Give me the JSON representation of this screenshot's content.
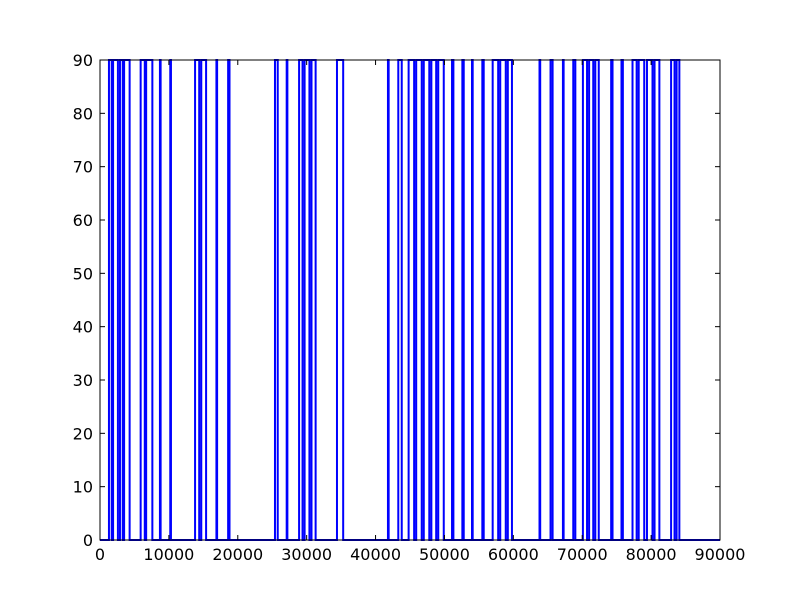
{
  "chart_data": {
    "type": "line",
    "title": "",
    "xlabel": "",
    "ylabel": "",
    "xlim": [
      0,
      90000
    ],
    "ylim": [
      0,
      90
    ],
    "grid": false,
    "legend": "none",
    "xticks": [
      0,
      10000,
      20000,
      30000,
      40000,
      50000,
      60000,
      70000,
      80000,
      90000
    ],
    "yticks": [
      0,
      10,
      20,
      30,
      40,
      50,
      60,
      70,
      80,
      90
    ],
    "xtick_labels": [
      "0",
      "10000",
      "20000",
      "30000",
      "40000",
      "50000",
      "60000",
      "70000",
      "80000",
      "90000"
    ],
    "ytick_labels": [
      "0",
      "10",
      "20",
      "30",
      "40",
      "50",
      "60",
      "70",
      "80",
      "90"
    ],
    "series": [
      {
        "color": "#0000ff",
        "baseline": 0,
        "peak": 90,
        "x_start": 0,
        "x_end": 90000,
        "high_intervals": [
          [
            1300,
            1700
          ],
          [
            1900,
            2600
          ],
          [
            2900,
            3300
          ],
          [
            3500,
            4300
          ],
          [
            5900,
            6500
          ],
          [
            6700,
            7600
          ],
          [
            8700,
            8800
          ],
          [
            10200,
            10300
          ],
          [
            13800,
            14400
          ],
          [
            14700,
            15400
          ],
          [
            16900,
            17000
          ],
          [
            18600,
            18800
          ],
          [
            25400,
            25800
          ],
          [
            27100,
            27200
          ],
          [
            28900,
            29400
          ],
          [
            29700,
            30400
          ],
          [
            30700,
            31300
          ],
          [
            34400,
            35300
          ],
          [
            41800,
            41900
          ],
          [
            43300,
            43800
          ],
          [
            44800,
            45600
          ],
          [
            45900,
            46700
          ],
          [
            47000,
            47800
          ],
          [
            48100,
            48800
          ],
          [
            49100,
            49900
          ],
          [
            51100,
            51300
          ],
          [
            52600,
            52800
          ],
          [
            54000,
            54100
          ],
          [
            55500,
            55700
          ],
          [
            57000,
            57800
          ],
          [
            58100,
            58900
          ],
          [
            59200,
            59800
          ],
          [
            63800,
            63900
          ],
          [
            65400,
            65700
          ],
          [
            67200,
            67300
          ],
          [
            68700,
            69000
          ],
          [
            70100,
            70700
          ],
          [
            71000,
            71600
          ],
          [
            71900,
            72400
          ],
          [
            74200,
            74400
          ],
          [
            75700,
            75900
          ],
          [
            77300,
            77900
          ],
          [
            78200,
            79000
          ],
          [
            79400,
            80200
          ],
          [
            80500,
            81200
          ],
          [
            82900,
            83400
          ],
          [
            83700,
            84100
          ]
        ]
      }
    ]
  }
}
